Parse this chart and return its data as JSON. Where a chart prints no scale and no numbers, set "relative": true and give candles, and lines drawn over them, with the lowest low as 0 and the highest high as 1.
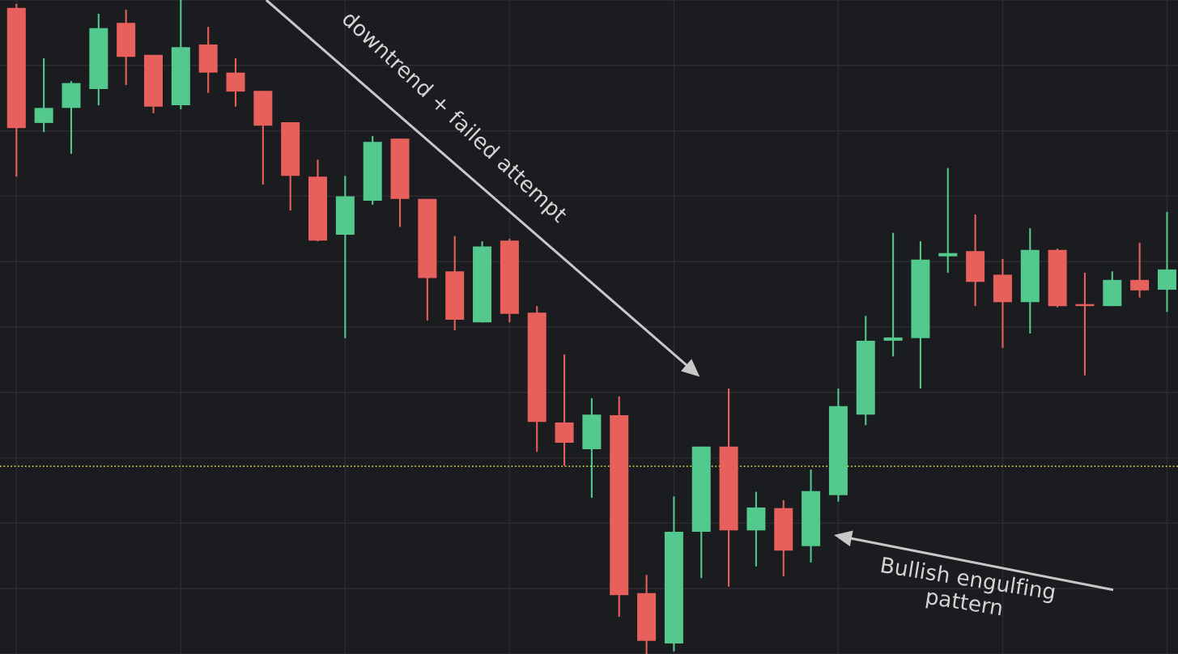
{
  "chart_data": {
    "type": "candlestick",
    "relative": true,
    "grid": true,
    "categories": [
      null,
      null,
      null,
      null,
      null,
      null,
      null,
      null,
      null,
      null,
      null,
      null,
      null,
      null,
      null,
      null,
      null,
      null,
      null,
      null,
      null,
      null,
      null,
      null,
      null,
      null,
      null,
      null,
      null,
      null,
      null,
      null,
      null,
      null,
      null,
      null,
      null,
      null,
      null,
      null,
      null,
      null,
      null
    ],
    "ohlc": [
      [
        0.988,
        0.994,
        0.73,
        0.804
      ],
      [
        0.812,
        0.911,
        0.798,
        0.835
      ],
      [
        0.835,
        0.876,
        0.765,
        0.873
      ],
      [
        0.864,
        0.979,
        0.839,
        0.957
      ],
      [
        0.965,
        0.985,
        0.87,
        0.913
      ],
      [
        0.916,
        0.916,
        0.827,
        0.837
      ],
      [
        0.839,
        1.0,
        0.833,
        0.928
      ],
      [
        0.932,
        0.959,
        0.858,
        0.889
      ],
      [
        0.889,
        0.911,
        0.837,
        0.86
      ],
      [
        0.861,
        0.861,
        0.718,
        0.808
      ],
      [
        0.813,
        0.813,
        0.678,
        0.731
      ],
      [
        0.73,
        0.756,
        0.631,
        0.632
      ],
      [
        0.641,
        0.731,
        0.483,
        0.7
      ],
      [
        0.693,
        0.792,
        0.687,
        0.783
      ],
      [
        0.788,
        0.788,
        0.653,
        0.696
      ],
      [
        0.696,
        0.696,
        0.51,
        0.575
      ],
      [
        0.585,
        0.639,
        0.495,
        0.511
      ],
      [
        0.507,
        0.631,
        0.507,
        0.623
      ],
      [
        0.632,
        0.635,
        0.507,
        0.52
      ],
      [
        0.522,
        0.532,
        0.309,
        0.355
      ],
      [
        0.354,
        0.458,
        0.288,
        0.323
      ],
      [
        0.313,
        0.391,
        0.239,
        0.366
      ],
      [
        0.365,
        0.394,
        0.057,
        0.09
      ],
      [
        0.093,
        0.121,
        0.0,
        0.02
      ],
      [
        0.016,
        0.241,
        0.004,
        0.187
      ],
      [
        0.187,
        0.317,
        0.116,
        0.317
      ],
      [
        0.317,
        0.406,
        0.103,
        0.189
      ],
      [
        0.189,
        0.248,
        0.134,
        0.224
      ],
      [
        0.223,
        0.235,
        0.119,
        0.158
      ],
      [
        0.165,
        0.282,
        0.14,
        0.249
      ],
      [
        0.243,
        0.406,
        0.233,
        0.379
      ],
      [
        0.366,
        0.517,
        0.35,
        0.479
      ],
      [
        0.479,
        0.644,
        0.455,
        0.484
      ],
      [
        0.483,
        0.631,
        0.406,
        0.603
      ],
      [
        0.608,
        0.743,
        0.583,
        0.613
      ],
      [
        0.616,
        0.672,
        0.532,
        0.569
      ],
      [
        0.58,
        0.604,
        0.468,
        0.538
      ],
      [
        0.538,
        0.651,
        0.49,
        0.618
      ],
      [
        0.618,
        0.62,
        0.53,
        0.532
      ],
      [
        0.535,
        0.583,
        0.426,
        0.532
      ],
      [
        0.532,
        0.585,
        0.532,
        0.572
      ],
      [
        0.572,
        0.629,
        0.545,
        0.556
      ],
      [
        0.557,
        0.676,
        0.523,
        0.588
      ]
    ],
    "colors": [
      "#e8605c",
      "#53c98e",
      "#53c98e",
      "#53c98e",
      "#e8605c",
      "#e8605c",
      "#53c98e",
      "#e8605c",
      "#e8605c",
      "#e8605c",
      "#e8605c",
      "#e8605c",
      "#53c98e",
      "#53c98e",
      "#e8605c",
      "#e8605c",
      "#e8605c",
      "#53c98e",
      "#e8605c",
      "#e8605c",
      "#e8605c",
      "#53c98e",
      "#e8605c",
      "#e8605c",
      "#53c98e",
      "#53c98e",
      "#e8605c",
      "#53c98e",
      "#e8605c",
      "#53c98e",
      "#53c98e",
      "#53c98e",
      "#53c98e",
      "#53c98e",
      "#53c98e",
      "#e8605c",
      "#e8605c",
      "#53c98e",
      "#e8605c",
      "#e8605c",
      "#53c98e",
      "#e8605c",
      "#53c98e"
    ],
    "ref_lines": [
      {
        "axis": "y",
        "value": 0.287,
        "color": "#d8c84a",
        "line_style": "dotted"
      }
    ],
    "annotations": [
      "downtrend + failed attempt",
      "Bullish engulfing pattern"
    ]
  }
}
